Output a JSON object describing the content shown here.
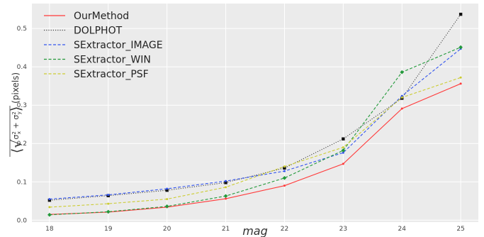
{
  "chart_data": {
    "type": "line",
    "title": "",
    "xlabel": "mag",
    "ylabel_parts": {
      "prefix": "⟨",
      "sqrt": "√",
      "sigma": "σ",
      "sub_x": "x",
      "sub_y": "y",
      "sup": "2",
      "plus": " + ",
      "suffix": "⟩",
      "unit": " (pixels)"
    },
    "x": [
      18,
      19,
      20,
      21,
      22,
      23,
      24,
      25
    ],
    "xlim": [
      17.7,
      25.3
    ],
    "ylim": [
      -0.005,
      0.565
    ],
    "xticks": [
      "18",
      "19",
      "20",
      "21",
      "22",
      "23",
      "24",
      "25"
    ],
    "yticks": [
      "0.0",
      "0.1",
      "0.2",
      "0.3",
      "0.4",
      "0.5"
    ],
    "ytick_values": [
      0.0,
      0.1,
      0.2,
      0.3,
      0.4,
      0.5
    ],
    "grid": true,
    "legend_position": "top-left",
    "background": "#ebebeb",
    "series": [
      {
        "name": "OurMethod",
        "color": "#ff3b3b",
        "dash": "",
        "marker": "",
        "values": [
          0.015,
          0.021,
          0.034,
          0.056,
          0.09,
          0.147,
          0.291,
          0.356
        ]
      },
      {
        "name": "DOLPHOT",
        "color": "#444444",
        "dash": "1.2 2",
        "marker": "square",
        "values": [
          0.052,
          0.064,
          0.078,
          0.098,
          0.136,
          0.212,
          0.318,
          0.537
        ]
      },
      {
        "name": "SExtractor_IMAGE",
        "color": "#3355ee",
        "dash": "4 2.5",
        "marker": "",
        "values": [
          0.055,
          0.066,
          0.082,
          0.102,
          0.128,
          0.176,
          0.324,
          0.447
        ]
      },
      {
        "name": "SExtractor_WIN",
        "color": "#22993a",
        "dash": "4 2.5",
        "marker": "diamond",
        "values": [
          0.014,
          0.022,
          0.036,
          0.063,
          0.11,
          0.182,
          0.386,
          0.451
        ]
      },
      {
        "name": "SExtractor_PSF",
        "color": "#cccc33",
        "dash": "4 2.5",
        "marker": "",
        "values": [
          0.034,
          0.043,
          0.055,
          0.086,
          0.14,
          0.19,
          0.32,
          0.372
        ]
      }
    ]
  }
}
